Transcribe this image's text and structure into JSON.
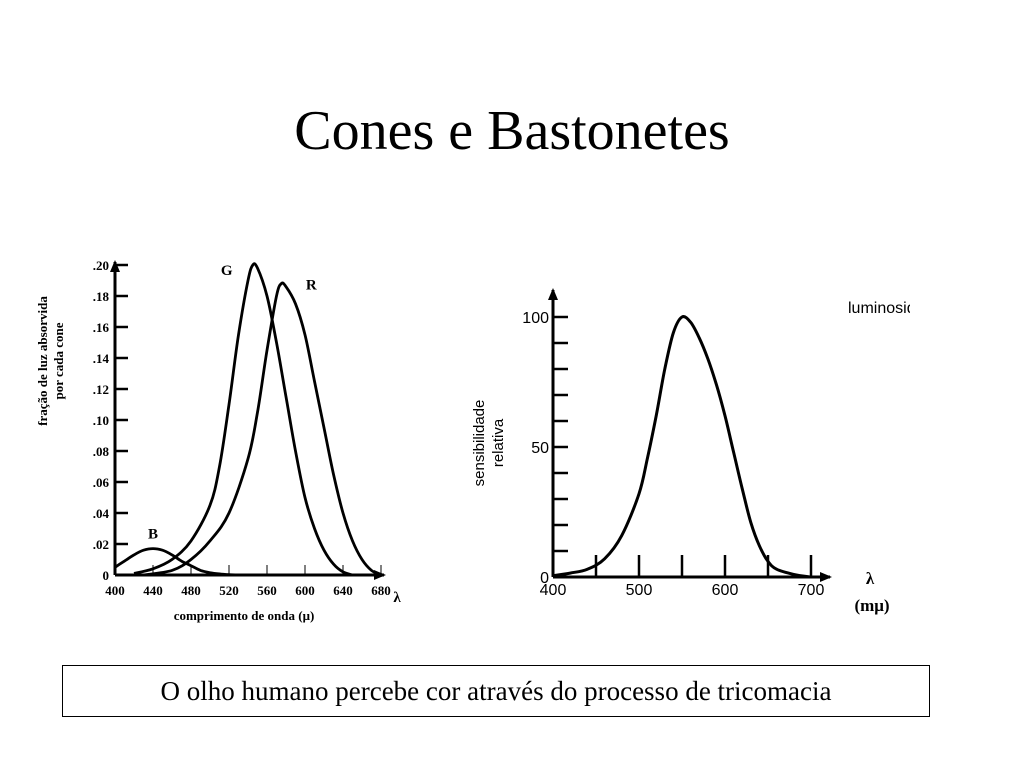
{
  "slide": {
    "title": "Cones e Bastonetes",
    "caption": "O olho humano percebe cor através do processo de tricomacia"
  },
  "chart_data": [
    {
      "type": "line",
      "ylabel_lines": [
        "fração de luz absorvida",
        "por cada cone"
      ],
      "xlabel": "comprimento de onda (μ)",
      "x_axis_symbol": "λ",
      "x_ticks": [
        "400",
        "440",
        "480",
        "520",
        "560",
        "600",
        "640",
        "680"
      ],
      "y_ticks": [
        "0",
        ".02",
        ".04",
        ".06",
        ".08",
        ".10",
        ".12",
        ".14",
        ".16",
        ".18",
        ".20"
      ],
      "xlim": [
        400,
        690
      ],
      "ylim": [
        0,
        0.21
      ],
      "series": [
        {
          "name": "B",
          "x": [
            400,
            410,
            420,
            430,
            440,
            450,
            460,
            470,
            480,
            490,
            500,
            510,
            520,
            530
          ],
          "y": [
            0.005,
            0.009,
            0.013,
            0.016,
            0.017,
            0.016,
            0.013,
            0.009,
            0.006,
            0.003,
            0.0015,
            0.0007,
            0.0002,
            0
          ]
        },
        {
          "name": "G",
          "x": [
            420,
            440,
            460,
            480,
            500,
            510,
            520,
            530,
            540,
            545,
            550,
            560,
            570,
            580,
            590,
            600,
            610,
            620,
            630,
            640,
            650
          ],
          "y": [
            0.001,
            0.004,
            0.01,
            0.022,
            0.045,
            0.07,
            0.11,
            0.155,
            0.19,
            0.2,
            0.198,
            0.18,
            0.15,
            0.115,
            0.08,
            0.05,
            0.03,
            0.016,
            0.007,
            0.002,
            0
          ]
        },
        {
          "name": "R",
          "x": [
            430,
            460,
            480,
            500,
            520,
            540,
            550,
            560,
            570,
            575,
            580,
            590,
            600,
            610,
            620,
            630,
            640,
            650,
            660,
            670,
            680
          ],
          "y": [
            0,
            0.003,
            0.01,
            0.022,
            0.04,
            0.075,
            0.105,
            0.145,
            0.18,
            0.188,
            0.186,
            0.175,
            0.155,
            0.125,
            0.095,
            0.065,
            0.04,
            0.022,
            0.01,
            0.003,
            0
          ]
        }
      ]
    },
    {
      "type": "line",
      "ylabel_lines": [
        "sensibilidade",
        "relativa"
      ],
      "x_axis_symbol": "λ",
      "x_unit": "(mμ)",
      "x_ticks": [
        "400",
        "500",
        "600",
        "700"
      ],
      "y_ticks": [
        "0",
        "50",
        "100"
      ],
      "xlim": [
        400,
        710
      ],
      "ylim": [
        0,
        107
      ],
      "series": [
        {
          "name": "luminosidade",
          "x": [
            400,
            420,
            440,
            460,
            480,
            500,
            510,
            520,
            530,
            540,
            550,
            560,
            570,
            580,
            590,
            600,
            610,
            620,
            630,
            640,
            650,
            660,
            680,
            700
          ],
          "y": [
            0.5,
            1.5,
            3,
            7,
            16,
            32,
            46,
            62,
            80,
            94,
            100,
            98,
            92,
            84,
            74,
            62,
            48,
            34,
            21,
            12,
            6,
            3,
            1,
            0
          ]
        }
      ]
    }
  ]
}
